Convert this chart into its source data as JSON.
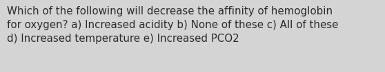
{
  "text": "Which of the following will decrease the affinity of hemoglobin\nfor oxygen? a) Increased acidity b) None of these c) All of these\nd) Increased temperature e) Increased PCO2",
  "background_color": "#d4d4d4",
  "text_color": "#2b2b2b",
  "font_size": 10.8,
  "fig_width": 5.58,
  "fig_height": 1.05,
  "dpi": 100
}
